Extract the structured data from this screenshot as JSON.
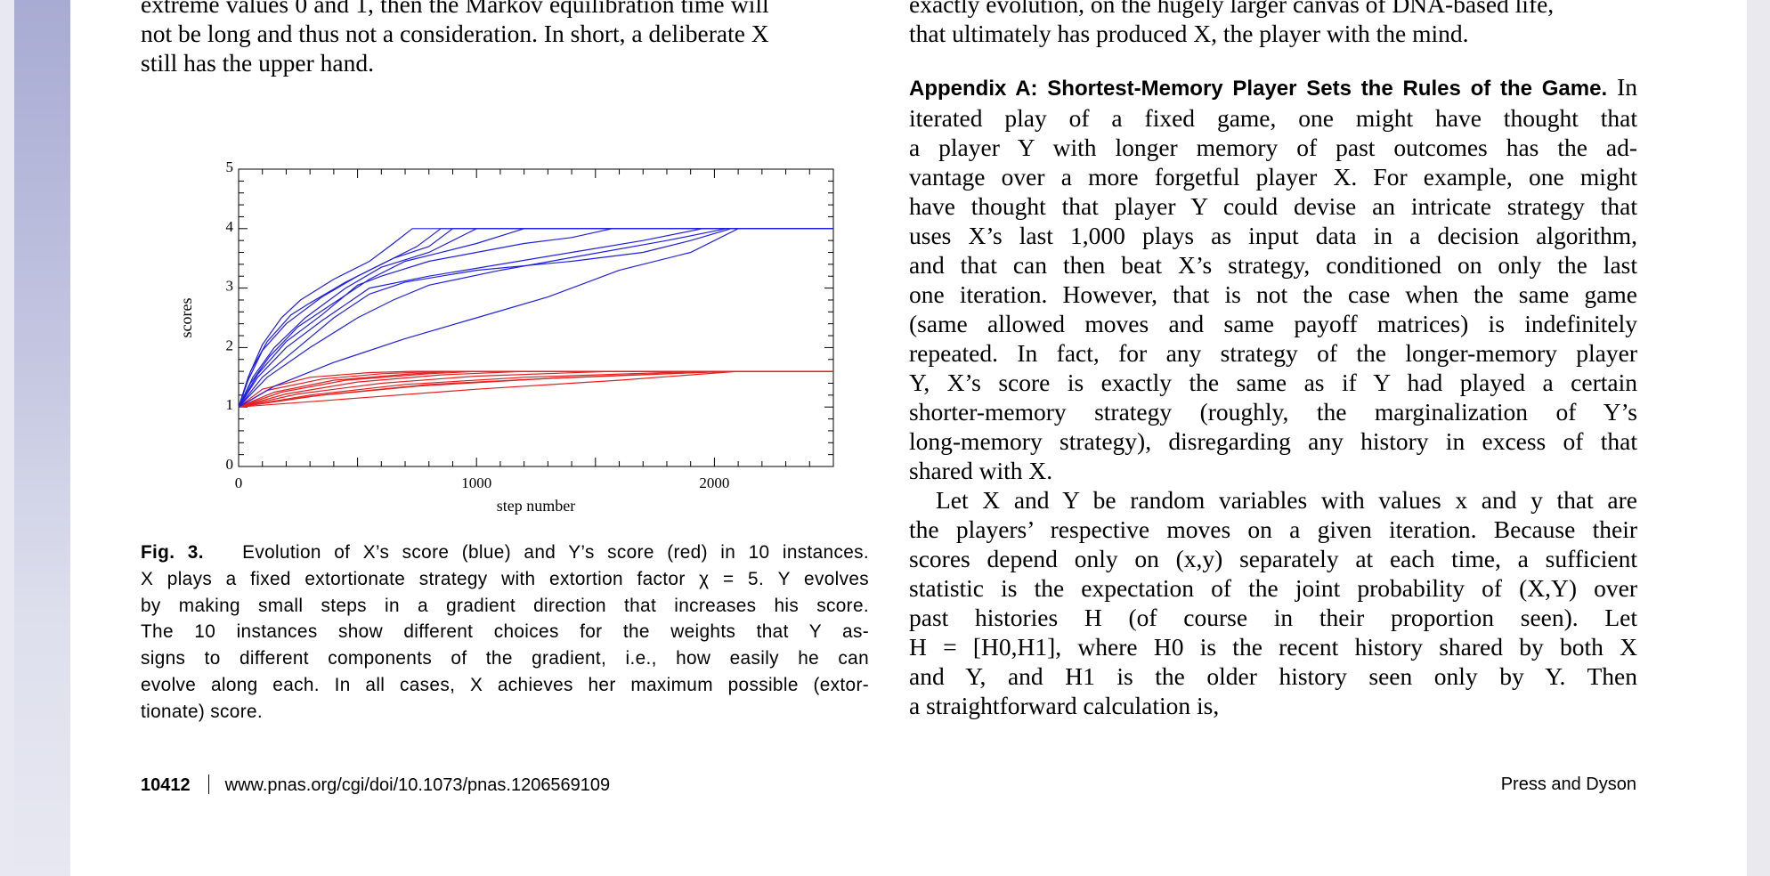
{
  "left_column": {
    "text_lines": [
      "extreme values 0 and 1, then the Markov equilibration time will",
      "not be long and thus not a consideration. In short, a deliberate X",
      "still has the upper hand."
    ]
  },
  "right_column": {
    "top_lines": [
      "exactly evolution, on the hugely larger canvas of DNA-based life,",
      "that ultimately has produced X, the player with the mind."
    ],
    "appendix_heading": "Appendix A: Shortest-Memory Player Sets the Rules of the Game.",
    "appendix_para1_lines": [
      "In",
      "iterated play of a fixed game, one might have thought that",
      "a player Y with longer memory of past outcomes has the ad-",
      "vantage over a more forgetful player X. For example, one might",
      "have thought that player Y could devise an intricate strategy that",
      "uses X’s last 1,000 plays as input data in a decision algorithm,",
      "and that can then beat X’s strategy, conditioned on only the last",
      "one iteration. However, that is not the case when the same game",
      "(same allowed moves and same payoff matrices) is indefinitely",
      "repeated. In fact, for any strategy of the longer-memory player",
      "Y, X’s score is exactly the same as if Y had played a certain",
      "shorter-memory strategy (roughly, the marginalization of Y’s",
      "long-memory strategy), disregarding any history in excess of that",
      "shared with X."
    ],
    "appendix_para2_lines": [
      "Let X and Y be random variables with values x and y that are",
      "the players’ respective moves on a given iteration. Because their",
      "scores depend only on (x,y) separately at each time, a sufficient",
      "statistic is the expectation of the joint probability of (X,Y) over",
      "past histories H (of course in their proportion seen). Let",
      "H = [H0,H1], where H0 is the recent history shared by both X",
      "and Y, and H1 is the older history seen only by Y. Then",
      "a straightforward calculation is,"
    ]
  },
  "figure_caption": {
    "label": "Fig. 3.",
    "lines": [
      "Evolution of X’s score (blue) and Y’s score (red) in 10 instances.",
      "X plays a fixed extortionate strategy with extortion factor χ = 5. Y evolves",
      "by making small steps in a gradient direction that increases his score.",
      "The 10 instances show different choices for the weights that Y as-",
      "signs to different components of the gradient, i.e., how easily he can",
      "evolve along each. In all cases, X achieves her maximum possible (extor-",
      "tionate) score."
    ]
  },
  "footer": {
    "page_number": "10412",
    "doi": "www.pnas.org/cgi/doi/10.1073/pnas.1206569109",
    "authors": "Press and Dyson"
  },
  "chart_data": {
    "type": "line",
    "xlabel": "step number",
    "ylabel": "scores",
    "xlim": [
      0,
      2500
    ],
    "ylim": [
      0,
      5
    ],
    "x_ticks": [
      0,
      1000,
      2000
    ],
    "y_ticks": [
      0,
      1,
      2,
      3,
      4,
      5
    ],
    "grid": false,
    "x_score_color": "#1f1fe6",
    "y_score_color": "#e61f1f",
    "x_score_series": [
      {
        "points": [
          [
            0,
            1
          ],
          [
            40,
            1.5
          ],
          [
            100,
            2.05
          ],
          [
            180,
            2.5
          ],
          [
            260,
            2.8
          ],
          [
            400,
            3.15
          ],
          [
            550,
            3.45
          ],
          [
            650,
            3.75
          ],
          [
            730,
            4.0
          ],
          [
            2500,
            4.0
          ]
        ]
      },
      {
        "points": [
          [
            0,
            1
          ],
          [
            50,
            1.6
          ],
          [
            120,
            2.1
          ],
          [
            220,
            2.55
          ],
          [
            300,
            2.75
          ],
          [
            450,
            3.1
          ],
          [
            600,
            3.4
          ],
          [
            750,
            3.7
          ],
          [
            850,
            4.0
          ],
          [
            2500,
            4.0
          ]
        ]
      },
      {
        "points": [
          [
            0,
            1
          ],
          [
            40,
            1.45
          ],
          [
            100,
            1.95
          ],
          [
            200,
            2.4
          ],
          [
            350,
            2.85
          ],
          [
            500,
            3.2
          ],
          [
            650,
            3.5
          ],
          [
            800,
            3.7
          ],
          [
            900,
            4.0
          ],
          [
            2500,
            4.0
          ]
        ]
      },
      {
        "points": [
          [
            0,
            1
          ],
          [
            60,
            1.5
          ],
          [
            150,
            2.0
          ],
          [
            280,
            2.5
          ],
          [
            450,
            3.0
          ],
          [
            600,
            3.35
          ],
          [
            800,
            3.6
          ],
          [
            950,
            3.9
          ],
          [
            1000,
            4.0
          ],
          [
            2500,
            4.0
          ]
        ]
      },
      {
        "points": [
          [
            0,
            1
          ],
          [
            50,
            1.4
          ],
          [
            130,
            1.85
          ],
          [
            250,
            2.35
          ],
          [
            400,
            2.75
          ],
          [
            550,
            3.15
          ],
          [
            700,
            3.45
          ],
          [
            800,
            3.55
          ],
          [
            1000,
            3.75
          ],
          [
            1200,
            4.0
          ],
          [
            2500,
            4.0
          ]
        ]
      },
      {
        "points": [
          [
            0,
            1
          ],
          [
            80,
            1.55
          ],
          [
            200,
            2.1
          ],
          [
            350,
            2.55
          ],
          [
            500,
            3.05
          ],
          [
            600,
            3.2
          ],
          [
            800,
            3.45
          ],
          [
            1000,
            3.6
          ],
          [
            1200,
            3.75
          ],
          [
            1400,
            3.85
          ],
          [
            1570,
            4.0
          ],
          [
            2500,
            4.0
          ]
        ]
      },
      {
        "points": [
          [
            0,
            1
          ],
          [
            80,
            1.5
          ],
          [
            200,
            2.0
          ],
          [
            350,
            2.45
          ],
          [
            550,
            3.0
          ],
          [
            800,
            3.2
          ],
          [
            1100,
            3.4
          ],
          [
            1400,
            3.6
          ],
          [
            1700,
            3.8
          ],
          [
            1950,
            4.0
          ],
          [
            2500,
            4.0
          ]
        ]
      },
      {
        "points": [
          [
            0,
            1
          ],
          [
            100,
            1.5
          ],
          [
            250,
            2.0
          ],
          [
            400,
            2.5
          ],
          [
            550,
            2.9
          ],
          [
            700,
            3.1
          ],
          [
            1000,
            3.3
          ],
          [
            1400,
            3.45
          ],
          [
            1700,
            3.6
          ],
          [
            1900,
            3.8
          ],
          [
            2070,
            4.0
          ],
          [
            2500,
            4.0
          ]
        ]
      },
      {
        "points": [
          [
            0,
            1
          ],
          [
            150,
            1.35
          ],
          [
            400,
            1.75
          ],
          [
            700,
            2.15
          ],
          [
            1000,
            2.5
          ],
          [
            1300,
            2.85
          ],
          [
            1600,
            3.3
          ],
          [
            1900,
            3.6
          ],
          [
            2100,
            4.0
          ],
          [
            2500,
            4.0
          ]
        ]
      },
      {
        "points": [
          [
            0,
            1
          ],
          [
            120,
            1.5
          ],
          [
            300,
            2.0
          ],
          [
            500,
            2.5
          ],
          [
            650,
            2.8
          ],
          [
            800,
            3.05
          ],
          [
            1100,
            3.3
          ],
          [
            1450,
            3.55
          ],
          [
            1800,
            3.8
          ],
          [
            2050,
            4.0
          ],
          [
            2500,
            4.0
          ]
        ]
      }
    ],
    "y_score_series": [
      {
        "points": [
          [
            0,
            1
          ],
          [
            100,
            1.3
          ],
          [
            300,
            1.5
          ],
          [
            550,
            1.58
          ],
          [
            730,
            1.6
          ],
          [
            2500,
            1.6
          ]
        ]
      },
      {
        "points": [
          [
            0,
            1
          ],
          [
            120,
            1.28
          ],
          [
            350,
            1.47
          ],
          [
            600,
            1.56
          ],
          [
            850,
            1.6
          ],
          [
            2500,
            1.6
          ]
        ]
      },
      {
        "points": [
          [
            0,
            1
          ],
          [
            150,
            1.25
          ],
          [
            400,
            1.45
          ],
          [
            700,
            1.55
          ],
          [
            900,
            1.6
          ],
          [
            2500,
            1.6
          ]
        ]
      },
      {
        "points": [
          [
            0,
            1
          ],
          [
            180,
            1.25
          ],
          [
            450,
            1.45
          ],
          [
            800,
            1.56
          ],
          [
            1000,
            1.6
          ],
          [
            2500,
            1.6
          ]
        ]
      },
      {
        "points": [
          [
            0,
            1
          ],
          [
            200,
            1.22
          ],
          [
            500,
            1.42
          ],
          [
            850,
            1.54
          ],
          [
            1200,
            1.6
          ],
          [
            2500,
            1.6
          ]
        ]
      },
      {
        "points": [
          [
            0,
            1
          ],
          [
            250,
            1.22
          ],
          [
            600,
            1.4
          ],
          [
            1000,
            1.52
          ],
          [
            1570,
            1.6
          ],
          [
            2500,
            1.6
          ]
        ]
      },
      {
        "points": [
          [
            0,
            1
          ],
          [
            300,
            1.2
          ],
          [
            700,
            1.38
          ],
          [
            1200,
            1.5
          ],
          [
            1950,
            1.6
          ],
          [
            2500,
            1.6
          ]
        ]
      },
      {
        "points": [
          [
            0,
            1
          ],
          [
            300,
            1.18
          ],
          [
            750,
            1.35
          ],
          [
            1300,
            1.48
          ],
          [
            2070,
            1.6
          ],
          [
            2500,
            1.6
          ]
        ]
      },
      {
        "points": [
          [
            0,
            1
          ],
          [
            500,
            1.15
          ],
          [
            1000,
            1.3
          ],
          [
            1600,
            1.45
          ],
          [
            2100,
            1.6
          ],
          [
            2500,
            1.6
          ]
        ]
      },
      {
        "points": [
          [
            0,
            1
          ],
          [
            350,
            1.2
          ],
          [
            800,
            1.38
          ],
          [
            1400,
            1.5
          ],
          [
            2050,
            1.6
          ],
          [
            2500,
            1.6
          ]
        ]
      }
    ]
  }
}
